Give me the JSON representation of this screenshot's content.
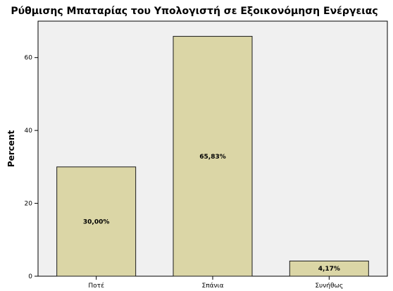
{
  "chart_data": {
    "type": "bar",
    "title": "Ρύθμισης Μπαταρίας του Υπολογιστή σε Εξοικονόμηση Ενέργειας",
    "xlabel": "",
    "ylabel": "Percent",
    "categories": [
      "Ποτέ",
      "Σπάνια",
      "Συνήθως"
    ],
    "values": [
      30.0,
      65.83,
      4.17
    ],
    "data_labels": [
      "30,00%",
      "65,83%",
      "4,17%"
    ],
    "ylim": [
      0,
      70
    ],
    "yticks": [
      0,
      20,
      40,
      60
    ],
    "grid": false,
    "legend": "none",
    "colors": {
      "plot_background": "#f0f0f0",
      "bar_fill": "#dbd6a6",
      "bar_stroke": "#1a1a1a",
      "axis": "#000000"
    }
  }
}
